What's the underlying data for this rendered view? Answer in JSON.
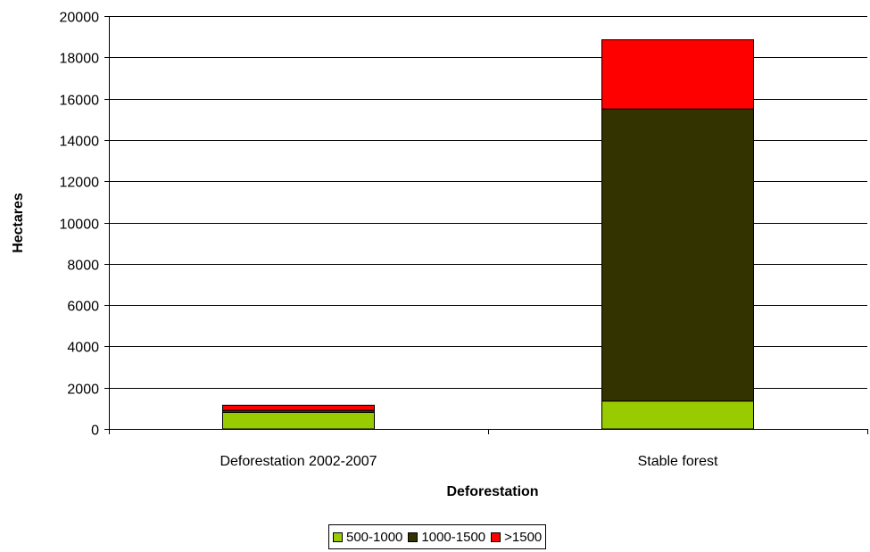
{
  "chart_data": {
    "type": "bar",
    "stacked": true,
    "categories": [
      "Deforestation 2002-2007",
      "Stable forest"
    ],
    "series": [
      {
        "name": "500-1000",
        "color": "#99cc00",
        "values": [
          800,
          1350
        ]
      },
      {
        "name": "1000-1500",
        "color": "#333300",
        "values": [
          100,
          14150
        ]
      },
      {
        "name": ">1500",
        "color": "#ff0000",
        "values": [
          250,
          3350
        ]
      }
    ],
    "xlabel": "Deforestation",
    "ylabel": "Hectares",
    "ylim": [
      0,
      20000
    ],
    "yticks": [
      0,
      2000,
      4000,
      6000,
      8000,
      10000,
      12000,
      14000,
      16000,
      18000,
      20000
    ],
    "grid": true,
    "legend_position": "bottom"
  }
}
